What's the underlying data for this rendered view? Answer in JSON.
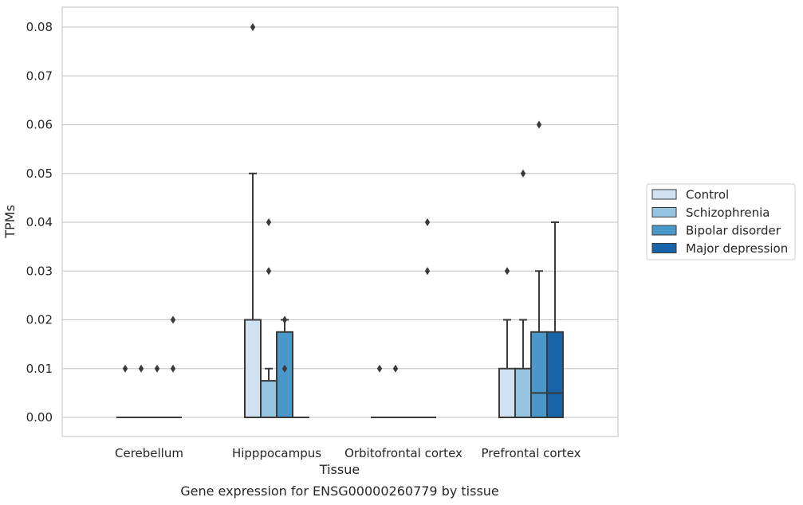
{
  "chart_data": {
    "type": "boxplot",
    "title": "Gene expression for ENSG00000260779 by tissue",
    "xlabel": "Tissue",
    "ylabel": "TPMs",
    "ylim": [
      -0.004,
      0.084
    ],
    "yticks": [
      "0.00",
      "0.01",
      "0.02",
      "0.03",
      "0.04",
      "0.05",
      "0.06",
      "0.07",
      "0.08"
    ],
    "ytick_values": [
      0,
      0.01,
      0.02,
      0.03,
      0.04,
      0.05,
      0.06,
      0.07,
      0.08
    ],
    "grid": true,
    "legend_position": "right",
    "categories": [
      "Cerebellum",
      "Hipppocampus",
      "Orbitofrontal cortex",
      "Prefrontal cortex"
    ],
    "series": [
      {
        "name": "Control",
        "color": "#d0e1f2",
        "boxes": [
          {
            "q1": 0,
            "median": 0,
            "q3": 0,
            "whislo": 0,
            "whishi": 0,
            "fliers": [
              0.01
            ]
          },
          {
            "q1": 0,
            "median": 0,
            "q3": 0.02,
            "whislo": 0,
            "whishi": 0.05,
            "fliers": [
              0.08
            ]
          },
          {
            "q1": 0,
            "median": 0,
            "q3": 0,
            "whislo": 0,
            "whishi": 0,
            "fliers": [
              0.01
            ]
          },
          {
            "q1": 0,
            "median": 0,
            "q3": 0.01,
            "whislo": 0,
            "whishi": 0.02,
            "fliers": [
              0.03
            ]
          }
        ]
      },
      {
        "name": "Schizophrenia",
        "color": "#94c4df",
        "boxes": [
          {
            "q1": 0,
            "median": 0,
            "q3": 0,
            "whislo": 0,
            "whishi": 0,
            "fliers": [
              0.01
            ]
          },
          {
            "q1": 0,
            "median": 0,
            "q3": 0.0075,
            "whislo": 0,
            "whishi": 0.01,
            "fliers": [
              0.03,
              0.04
            ]
          },
          {
            "q1": 0,
            "median": 0,
            "q3": 0,
            "whislo": 0,
            "whishi": 0,
            "fliers": [
              0.01
            ]
          },
          {
            "q1": 0,
            "median": 0,
            "q3": 0.01,
            "whislo": 0,
            "whishi": 0.02,
            "fliers": [
              0.05
            ]
          }
        ]
      },
      {
        "name": "Bipolar disorder",
        "color": "#4a98c9",
        "boxes": [
          {
            "q1": 0,
            "median": 0,
            "q3": 0,
            "whislo": 0,
            "whishi": 0,
            "fliers": [
              0.01
            ]
          },
          {
            "q1": 0,
            "median": 0,
            "q3": 0.0175,
            "whislo": 0,
            "whishi": 0.02,
            "fliers": [
              0.01,
              0.02
            ]
          },
          {
            "q1": 0,
            "median": 0,
            "q3": 0,
            "whislo": 0,
            "whishi": 0,
            "fliers": []
          },
          {
            "q1": 0,
            "median": 0.005,
            "q3": 0.0175,
            "whislo": 0,
            "whishi": 0.03,
            "fliers": [
              0.06
            ]
          }
        ]
      },
      {
        "name": "Major depression",
        "color": "#1764ab",
        "boxes": [
          {
            "q1": 0,
            "median": 0,
            "q3": 0,
            "whislo": 0,
            "whishi": 0,
            "fliers": [
              0.01,
              0.02
            ]
          },
          {
            "q1": 0,
            "median": 0,
            "q3": 0,
            "whislo": 0,
            "whishi": 0,
            "fliers": []
          },
          {
            "q1": 0,
            "median": 0,
            "q3": 0,
            "whislo": 0,
            "whishi": 0,
            "fliers": [
              0.03,
              0.04
            ]
          },
          {
            "q1": 0,
            "median": 0.005,
            "q3": 0.0175,
            "whislo": 0,
            "whishi": 0.04,
            "fliers": []
          }
        ]
      }
    ]
  }
}
